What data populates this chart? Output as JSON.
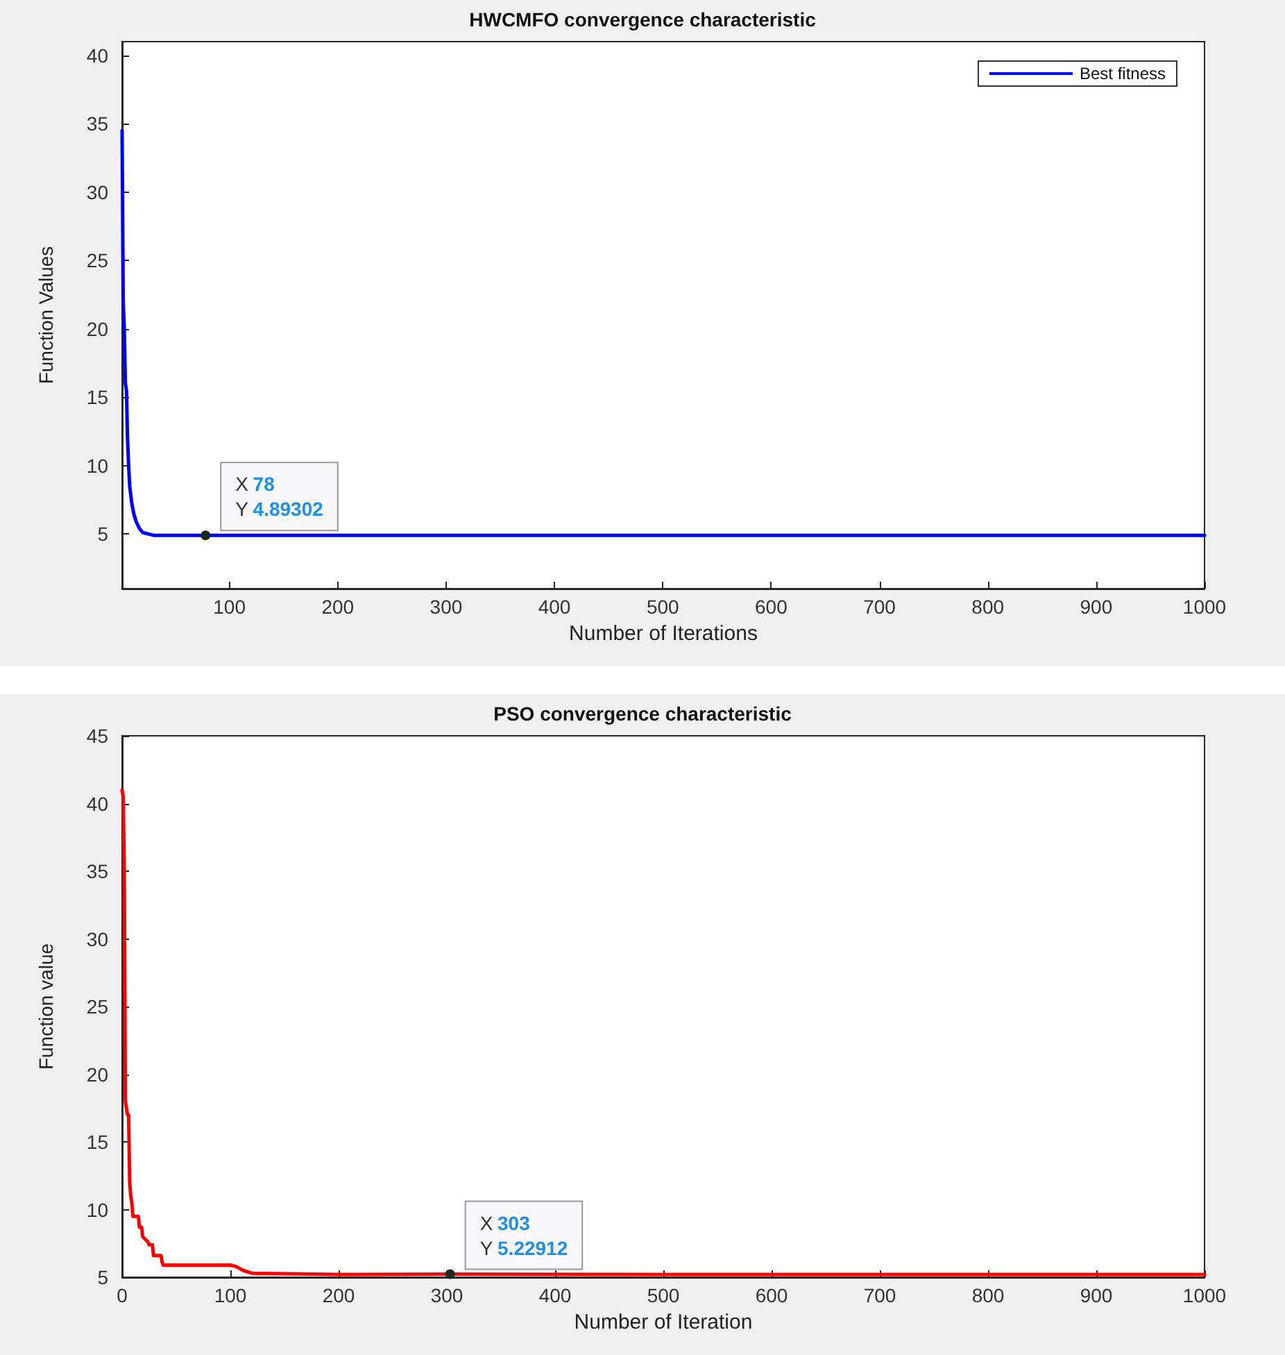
{
  "chart_data": [
    {
      "type": "line",
      "title": "HWCMFO convergence characteristic",
      "xlabel": "Number of Iterations",
      "ylabel": "Function Values",
      "xlim": [
        1,
        1000
      ],
      "xticks": [
        100,
        200,
        300,
        400,
        500,
        600,
        700,
        800,
        900,
        1000
      ],
      "ylim": [
        1,
        41
      ],
      "yticks": [
        5,
        10,
        15,
        20,
        25,
        30,
        35,
        40
      ],
      "grid": false,
      "legend": "top right",
      "marker": "none",
      "line_style": "solid",
      "series": [
        {
          "name": "Best fitness",
          "color": "#0000ff",
          "x": [
            1,
            2,
            3,
            4,
            5,
            6,
            7,
            8,
            10,
            12,
            14,
            17,
            20,
            25,
            30,
            40,
            78,
            200,
            400,
            600,
            800,
            1000
          ],
          "values": [
            34.5,
            22,
            20,
            16,
            15.5,
            12,
            10,
            8.5,
            7.2,
            6.4,
            5.9,
            5.4,
            5.1,
            5,
            4.9,
            4.9,
            4.89302,
            4.9,
            4.9,
            4.9,
            4.9,
            4.9
          ]
        }
      ],
      "annotations": [
        {
          "text": "X 78\nY 4.89302",
          "x": 78,
          "y": 4.89302
        }
      ]
    },
    {
      "type": "line",
      "title": "PSO convergence characteristic",
      "xlabel": "Number of Iteration",
      "ylabel": "Function value",
      "xlim": [
        0,
        1000
      ],
      "xticks": [
        0,
        100,
        200,
        300,
        400,
        500,
        600,
        700,
        800,
        900,
        1000
      ],
      "ylim": [
        5,
        45
      ],
      "yticks": [
        5,
        10,
        15,
        20,
        25,
        30,
        35,
        40,
        45
      ],
      "grid": false,
      "legend": false,
      "marker": "none",
      "line_style": "solid",
      "series": [
        {
          "color": "#ff0000",
          "x": [
            0,
            1,
            2,
            3,
            5,
            6,
            7,
            8,
            9,
            10,
            12,
            13,
            15,
            16,
            18,
            19,
            24,
            25,
            28,
            29,
            36,
            37,
            38,
            100,
            105,
            112,
            120,
            200,
            303,
            500,
            1000
          ],
          "values": [
            41,
            40.5,
            35,
            18,
            17,
            17,
            12,
            11,
            10.5,
            9.5,
            9.5,
            9.5,
            9.5,
            8.7,
            8.7,
            8,
            7.6,
            7.4,
            7.4,
            6.6,
            6.6,
            6.1,
            5.9,
            5.9,
            5.8,
            5.5,
            5.3,
            5.2,
            5.22912,
            5.2,
            5.2
          ]
        }
      ],
      "annotations": [
        {
          "text": "X 303\nY 5.22912",
          "x": 303,
          "y": 5.22912
        }
      ]
    }
  ]
}
